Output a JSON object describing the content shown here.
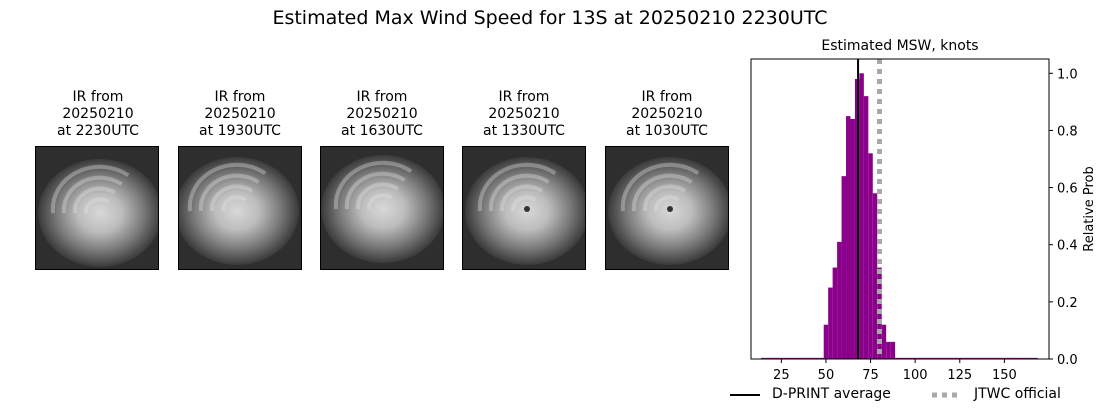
{
  "suptitle": "Estimated Max Wind Speed for 13S at 20250210 2230UTC",
  "panels": [
    {
      "line1": "IR from",
      "line2": "20250210",
      "line3": "at 2230UTC",
      "eye": false
    },
    {
      "line1": "IR from",
      "line2": "20250210",
      "line3": "at 1930UTC",
      "eye": false
    },
    {
      "line1": "IR from",
      "line2": "20250210",
      "line3": "at 1630UTC",
      "eye": false
    },
    {
      "line1": "IR from",
      "line2": "20250210",
      "line3": "at 1330UTC",
      "eye": true
    },
    {
      "line1": "IR from",
      "line2": "20250210",
      "line3": "at 1030UTC",
      "eye": true
    }
  ],
  "chart_data": {
    "type": "bar",
    "title": "Estimated MSW, knots",
    "xlabel": "",
    "ylabel": "Relative Prob",
    "xlim": [
      8,
      175
    ],
    "ylim": [
      0,
      1.05
    ],
    "xticks": [
      25,
      50,
      75,
      100,
      125,
      150
    ],
    "yticks": [
      0.0,
      0.2,
      0.4,
      0.6,
      0.8,
      1.0
    ],
    "bar_width": 2.5,
    "bar_color": "#8b008b",
    "bins": [
      {
        "x": 15.0,
        "p": 0.004
      },
      {
        "x": 17.5,
        "p": 0.004
      },
      {
        "x": 20.0,
        "p": 0.004
      },
      {
        "x": 22.5,
        "p": 0.004
      },
      {
        "x": 25.0,
        "p": 0.004
      },
      {
        "x": 27.5,
        "p": 0.004
      },
      {
        "x": 30.0,
        "p": 0.004
      },
      {
        "x": 32.5,
        "p": 0.004
      },
      {
        "x": 35.0,
        "p": 0.004
      },
      {
        "x": 37.5,
        "p": 0.004
      },
      {
        "x": 40.0,
        "p": 0.004
      },
      {
        "x": 42.5,
        "p": 0.004
      },
      {
        "x": 45.0,
        "p": 0.004
      },
      {
        "x": 47.5,
        "p": 0.004
      },
      {
        "x": 50.0,
        "p": 0.12
      },
      {
        "x": 52.5,
        "p": 0.25
      },
      {
        "x": 55.0,
        "p": 0.32
      },
      {
        "x": 57.5,
        "p": 0.41
      },
      {
        "x": 60.0,
        "p": 0.64
      },
      {
        "x": 62.5,
        "p": 0.85
      },
      {
        "x": 65.0,
        "p": 0.84
      },
      {
        "x": 67.5,
        "p": 0.98
      },
      {
        "x": 70.0,
        "p": 1.0
      },
      {
        "x": 72.5,
        "p": 0.92
      },
      {
        "x": 75.0,
        "p": 0.72
      },
      {
        "x": 77.5,
        "p": 0.58
      },
      {
        "x": 80.0,
        "p": 0.32
      },
      {
        "x": 82.5,
        "p": 0.12
      },
      {
        "x": 85.0,
        "p": 0.06
      },
      {
        "x": 87.5,
        "p": 0.06
      },
      {
        "x": 90.0,
        "p": 0.004
      },
      {
        "x": 92.5,
        "p": 0.004
      },
      {
        "x": 95.0,
        "p": 0.004
      },
      {
        "x": 97.5,
        "p": 0.004
      },
      {
        "x": 100.0,
        "p": 0.004
      },
      {
        "x": 102.5,
        "p": 0.004
      },
      {
        "x": 105.0,
        "p": 0.004
      },
      {
        "x": 107.5,
        "p": 0.004
      },
      {
        "x": 110.0,
        "p": 0.004
      },
      {
        "x": 112.5,
        "p": 0.004
      },
      {
        "x": 115.0,
        "p": 0.004
      },
      {
        "x": 117.5,
        "p": 0.004
      },
      {
        "x": 120.0,
        "p": 0.004
      },
      {
        "x": 122.5,
        "p": 0.004
      },
      {
        "x": 125.0,
        "p": 0.004
      },
      {
        "x": 127.5,
        "p": 0.004
      },
      {
        "x": 130.0,
        "p": 0.004
      },
      {
        "x": 132.5,
        "p": 0.004
      },
      {
        "x": 135.0,
        "p": 0.004
      },
      {
        "x": 137.5,
        "p": 0.004
      },
      {
        "x": 140.0,
        "p": 0.004
      },
      {
        "x": 142.5,
        "p": 0.004
      },
      {
        "x": 145.0,
        "p": 0.004
      },
      {
        "x": 147.5,
        "p": 0.004
      },
      {
        "x": 150.0,
        "p": 0.004
      },
      {
        "x": 152.5,
        "p": 0.004
      },
      {
        "x": 155.0,
        "p": 0.004
      },
      {
        "x": 157.5,
        "p": 0.004
      },
      {
        "x": 160.0,
        "p": 0.004
      },
      {
        "x": 162.5,
        "p": 0.004
      },
      {
        "x": 165.0,
        "p": 0.004
      },
      {
        "x": 167.5,
        "p": 0.004
      }
    ],
    "dprint_average": 68,
    "jtwc_official": 80,
    "legend": {
      "placement": "bottom",
      "entries": [
        {
          "label": "D-PRINT average",
          "style": "solid",
          "color": "#000000"
        },
        {
          "label": "JTWC official",
          "style": "dotted",
          "color": "#a9a9a9"
        }
      ]
    }
  }
}
